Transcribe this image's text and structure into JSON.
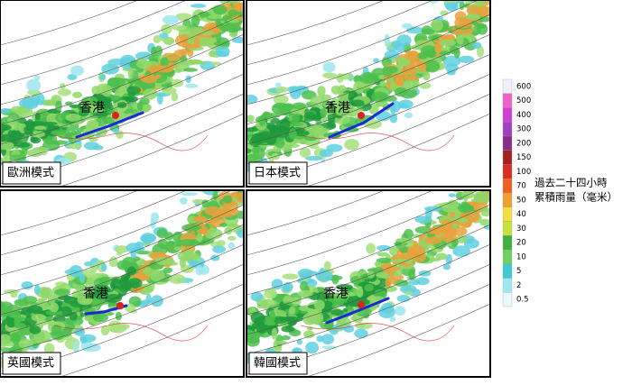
{
  "panels": [
    {
      "label": "歐洲模式",
      "city": "香港"
    },
    {
      "label": "日本模式",
      "city": "香港"
    },
    {
      "label": "英國模式",
      "city": "香港"
    },
    {
      "label": "韓國模式",
      "city": "香港"
    }
  ],
  "legend": {
    "title": [
      "過去二十四小時",
      "累積雨量（毫米）"
    ],
    "levels": [
      "600",
      "500",
      "400",
      "300",
      "200",
      "150",
      "100",
      "70",
      "50",
      "40",
      "30",
      "20",
      "10",
      "5",
      "2",
      "0.5"
    ]
  }
}
